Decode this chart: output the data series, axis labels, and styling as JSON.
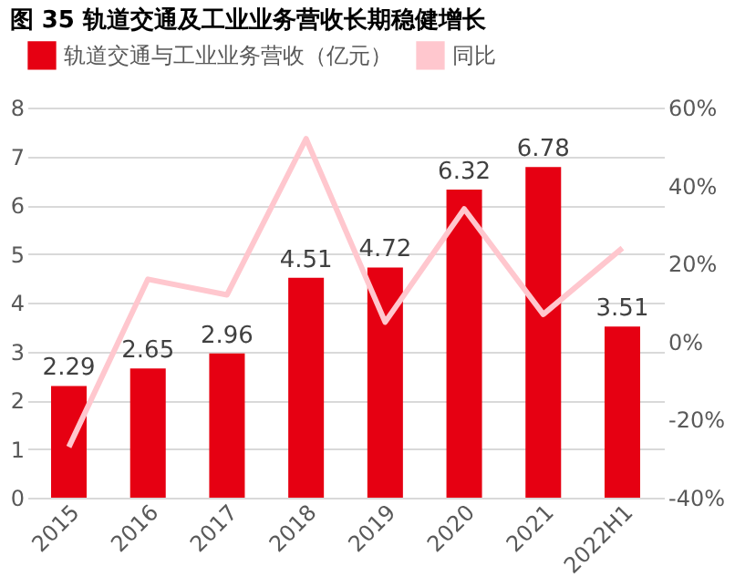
{
  "chart_data": {
    "type": "bar",
    "title": "图 35 轨道交通及工业业务营收长期稳健增长",
    "categories": [
      "2015",
      "2016",
      "2017",
      "2018",
      "2019",
      "2020",
      "2021",
      "2022H1"
    ],
    "series": [
      {
        "name": "轨道交通与工业业务营收（亿元）",
        "color": "#e60012",
        "values": [
          2.29,
          2.65,
          2.96,
          4.51,
          4.72,
          6.32,
          6.78,
          3.51
        ],
        "value_labels": [
          "2.29",
          "2.65",
          "2.96",
          "4.51",
          "4.72",
          "6.32",
          "6.78",
          "3.51"
        ]
      },
      {
        "name": "同比",
        "type": "line",
        "axis": "y2",
        "color": "#ffc7ce",
        "values": [
          -27,
          16,
          12,
          52,
          5,
          34,
          7,
          24
        ]
      }
    ],
    "ylim": [
      0,
      8
    ],
    "yticks": [
      0,
      1,
      2,
      3,
      4,
      5,
      6,
      7,
      8
    ],
    "y2lim": [
      -40,
      60
    ],
    "y2ticks": [
      {
        "value": -40,
        "label": "-40%"
      },
      {
        "value": -20,
        "label": "-20%"
      },
      {
        "value": 0,
        "label": "0%"
      },
      {
        "value": 20,
        "label": "20%"
      },
      {
        "value": 40,
        "label": "40%"
      },
      {
        "value": 60,
        "label": "60%"
      }
    ],
    "grid": "y",
    "legend": "top",
    "marker": "none",
    "line_style": "solid"
  }
}
